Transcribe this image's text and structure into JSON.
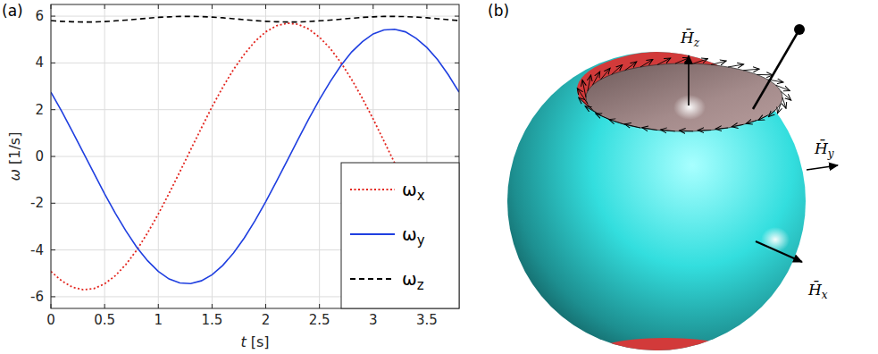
{
  "panel_labels": [
    "(a)",
    "(b)"
  ],
  "chart_data": {
    "type": "line",
    "x_label": "t [s]",
    "y_label": "ω [1/s]",
    "x": [
      0,
      0.1,
      0.2,
      0.3,
      0.4,
      0.5,
      0.6,
      0.7,
      0.8,
      0.9,
      1.0,
      1.1,
      1.2,
      1.3,
      1.4,
      1.5,
      1.6,
      1.7,
      1.8,
      1.9,
      2.0,
      2.1,
      2.2,
      2.3,
      2.4,
      2.5,
      2.6,
      2.7,
      2.8,
      2.9,
      3.0,
      3.1,
      3.2,
      3.3,
      3.4,
      3.5,
      3.6,
      3.7,
      3.8
    ],
    "series": [
      {
        "name": "ωx",
        "color": "#e3261f",
        "line_style": "dotted",
        "values": [
          -4.92,
          -5.32,
          -5.59,
          -5.7,
          -5.65,
          -5.45,
          -5.1,
          -4.61,
          -4.0,
          -3.27,
          -2.46,
          -1.58,
          -0.66,
          0.28,
          1.21,
          2.12,
          2.96,
          3.72,
          4.37,
          4.92,
          5.33,
          5.59,
          5.7,
          5.65,
          5.45,
          5.1,
          4.62,
          4.01,
          3.29,
          2.48,
          1.6,
          0.66,
          -0.28,
          -1.21,
          -2.11,
          -2.95,
          -3.71,
          -4.38,
          -4.91
        ]
      },
      {
        "name": "ωy",
        "color": "#1f3fe0",
        "line_style": "solid",
        "values": [
          2.75,
          1.94,
          1.07,
          0.18,
          -0.71,
          -1.6,
          -2.43,
          -3.2,
          -3.89,
          -4.46,
          -4.92,
          -5.24,
          -5.41,
          -5.44,
          -5.32,
          -5.06,
          -4.66,
          -4.13,
          -3.49,
          -2.75,
          -1.94,
          -1.07,
          -0.18,
          0.72,
          1.6,
          2.43,
          3.2,
          3.89,
          4.47,
          4.91,
          5.24,
          5.41,
          5.44,
          5.33,
          5.05,
          4.66,
          4.14,
          3.49,
          2.75
        ]
      },
      {
        "name": "ωz",
        "color": "#000000",
        "line_style": "dashed",
        "values": [
          5.81,
          5.78,
          5.76,
          5.75,
          5.75,
          5.77,
          5.8,
          5.83,
          5.87,
          5.91,
          5.95,
          5.97,
          5.99,
          5.99,
          5.98,
          5.96,
          5.93,
          5.89,
          5.85,
          5.81,
          5.78,
          5.76,
          5.75,
          5.75,
          5.77,
          5.8,
          5.83,
          5.87,
          5.91,
          5.95,
          5.97,
          5.99,
          5.99,
          5.98,
          5.96,
          5.93,
          5.89,
          5.85,
          5.81
        ]
      }
    ],
    "xlim": [
      0,
      3.8
    ],
    "xticks": [
      0,
      0.5,
      1,
      1.5,
      2,
      2.5,
      3,
      3.5
    ],
    "ylim": [
      -6.5,
      6.5
    ],
    "yticks": [
      -6,
      -4,
      -2,
      0,
      2,
      4,
      6
    ],
    "grid": true,
    "legend": "lower right"
  },
  "diagram": {
    "axis_labels": [
      {
        "base": "H̄",
        "sub": "z"
      },
      {
        "base": "H̄",
        "sub": "y"
      },
      {
        "base": "H̄",
        "sub": "x"
      }
    ]
  }
}
